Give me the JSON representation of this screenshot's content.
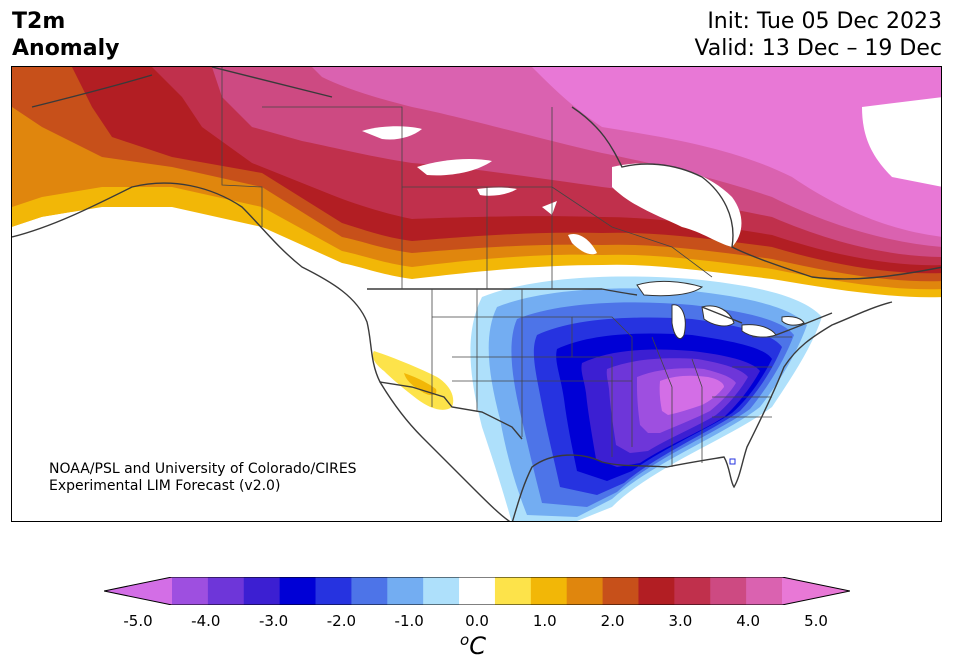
{
  "header": {
    "title_line1": "T2m",
    "title_line2": "Anomaly",
    "init": "Init: Tue 05 Dec 2023",
    "valid": "Valid: 13 Dec – 19 Dec"
  },
  "credit": {
    "line1": "NOAA/PSL and University of Colorado/CIRES",
    "line2": "Experimental LIM Forecast (v2.0)"
  },
  "colorbar": {
    "unit_base": "C",
    "unit_super": "o",
    "ticks": [
      "-5.0",
      "-4.0",
      "-3.0",
      "-2.0",
      "-1.0",
      "0.0",
      "1.0",
      "2.0",
      "3.0",
      "4.0",
      "5.0"
    ],
    "levels": [
      -5.0,
      -4.5,
      -4.0,
      -3.5,
      -3.0,
      -2.5,
      -2.0,
      -1.5,
      -1.0,
      -0.5,
      0.5,
      1.0,
      1.5,
      2.0,
      2.5,
      3.0,
      3.5,
      4.0,
      4.5,
      5.0
    ],
    "colors": [
      "#d36ee6",
      "#9e4fe0",
      "#6e36d9",
      "#3c1fd2",
      "#0000d6",
      "#2633e0",
      "#4d74e8",
      "#73adf2",
      "#aee0fb",
      "#ffffff",
      "#fde34a",
      "#f2b707",
      "#e0860d",
      "#c7501a",
      "#b21e23",
      "#c0304c",
      "#cd4a82",
      "#da62b0",
      "#e878d6"
    ]
  },
  "map": {
    "region": "North America",
    "projection": "conic",
    "features": [
      "coastlines",
      "country borders",
      "state/province borders"
    ]
  }
}
